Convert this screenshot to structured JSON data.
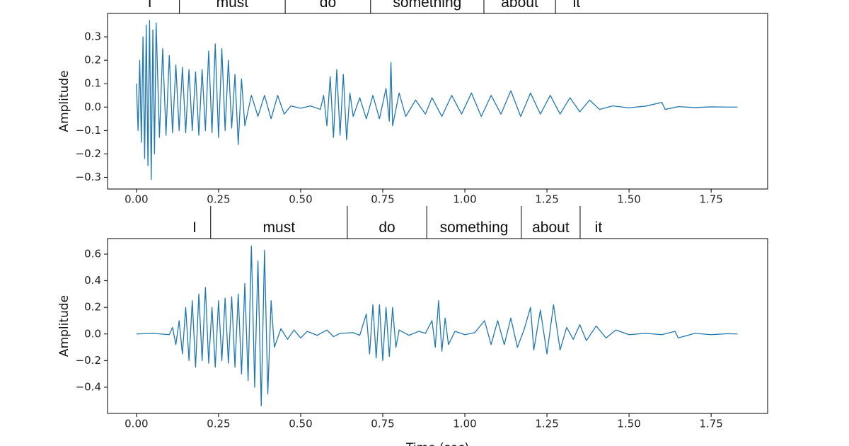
{
  "chart_data": [
    {
      "type": "line",
      "ylabel": "Amplitude",
      "color": "#1f77b4",
      "xlim": [
        -0.088,
        1.922
      ],
      "ylim": [
        -0.35,
        0.4
      ],
      "xticks": [
        {
          "value": 0,
          "label": "0.00"
        },
        {
          "value": 0.25,
          "label": "0.25"
        },
        {
          "value": 0.5,
          "label": "0.50"
        },
        {
          "value": 0.75,
          "label": "0.75"
        },
        {
          "value": 1,
          "label": "1.00"
        },
        {
          "value": 1.25,
          "label": "1.25"
        },
        {
          "value": 1.5,
          "label": "1.50"
        },
        {
          "value": 1.75,
          "label": "1.75"
        }
      ],
      "yticks": [
        {
          "value": -0.3,
          "label": "−0.3"
        },
        {
          "value": -0.2,
          "label": "−0.2"
        },
        {
          "value": -0.1,
          "label": "−0.1"
        },
        {
          "value": 0,
          "label": "0.0"
        },
        {
          "value": 0.1,
          "label": "0.1"
        },
        {
          "value": 0.2,
          "label": "0.2"
        },
        {
          "value": 0.3,
          "label": "0.3"
        }
      ],
      "words": [
        {
          "label": "I",
          "start": -0.05,
          "end": 0.131
        },
        {
          "label": "must",
          "start": 0.131,
          "end": 0.453
        },
        {
          "label": "do",
          "start": 0.453,
          "end": 0.713
        },
        {
          "label": "something",
          "start": 0.713,
          "end": 1.058
        },
        {
          "label": "about",
          "start": 1.058,
          "end": 1.276
        },
        {
          "label": "it",
          "start": 1.276,
          "end": 1.404
        }
      ],
      "x": [
        0,
        0.005,
        0.01,
        0.015,
        0.02,
        0.025,
        0.03,
        0.035,
        0.04,
        0.045,
        0.05,
        0.055,
        0.06,
        0.07,
        0.08,
        0.09,
        0.1,
        0.11,
        0.12,
        0.13,
        0.14,
        0.15,
        0.16,
        0.17,
        0.18,
        0.19,
        0.2,
        0.21,
        0.22,
        0.23,
        0.24,
        0.25,
        0.26,
        0.27,
        0.28,
        0.29,
        0.3,
        0.31,
        0.32,
        0.33,
        0.35,
        0.37,
        0.39,
        0.41,
        0.43,
        0.45,
        0.47,
        0.5,
        0.53,
        0.56,
        0.57,
        0.58,
        0.59,
        0.6,
        0.61,
        0.62,
        0.63,
        0.64,
        0.65,
        0.66,
        0.68,
        0.7,
        0.72,
        0.74,
        0.76,
        0.77,
        0.775,
        0.78,
        0.8,
        0.82,
        0.85,
        0.88,
        0.9,
        0.93,
        0.96,
        0.99,
        1.02,
        1.05,
        1.08,
        1.11,
        1.14,
        1.17,
        1.2,
        1.23,
        1.26,
        1.29,
        1.32,
        1.35,
        1.38,
        1.41,
        1.45,
        1.5,
        1.55,
        1.6,
        1.61,
        1.65,
        1.7,
        1.75,
        1.8,
        1.83
      ],
      "values": [
        0.1,
        -0.1,
        0.2,
        -0.15,
        0.3,
        -0.22,
        0.35,
        -0.25,
        0.37,
        -0.31,
        0.33,
        -0.2,
        0.36,
        -0.13,
        0.25,
        -0.12,
        0.22,
        -0.11,
        0.18,
        -0.1,
        0.17,
        -0.11,
        0.16,
        -0.1,
        0.15,
        -0.12,
        0.16,
        -0.1,
        0.24,
        -0.11,
        0.27,
        -0.13,
        0.25,
        -0.1,
        0.2,
        -0.09,
        0.14,
        -0.16,
        0.12,
        -0.08,
        0.05,
        -0.04,
        0.05,
        -0.05,
        0.05,
        -0.03,
        0.005,
        -0.005,
        0.005,
        -0.01,
        0.05,
        -0.08,
        0.13,
        -0.13,
        0.16,
        -0.12,
        0.14,
        -0.14,
        0.06,
        -0.04,
        0.04,
        -0.05,
        0.05,
        -0.05,
        0.08,
        -0.06,
        0.19,
        -0.08,
        0.06,
        -0.04,
        0.03,
        -0.03,
        0.04,
        -0.04,
        0.05,
        -0.03,
        0.06,
        -0.04,
        0.05,
        -0.03,
        0.07,
        -0.04,
        0.06,
        -0.03,
        0.05,
        -0.03,
        0.04,
        -0.02,
        0.03,
        -0.01,
        0.005,
        -0.003,
        0.004,
        0.02,
        -0.01,
        0.002,
        -0.002,
        0.001,
        0,
        0
      ]
    },
    {
      "type": "line",
      "ylabel": "Amplitude",
      "xlabel": "Time (sec)",
      "color": "#1f77b4",
      "xlim": [
        -0.088,
        1.922
      ],
      "ylim": [
        -0.597,
        0.717
      ],
      "xticks": [
        {
          "value": 0,
          "label": "0.00"
        },
        {
          "value": 0.25,
          "label": "0.25"
        },
        {
          "value": 0.5,
          "label": "0.50"
        },
        {
          "value": 0.75,
          "label": "0.75"
        },
        {
          "value": 1,
          "label": "1.00"
        },
        {
          "value": 1.25,
          "label": "1.25"
        },
        {
          "value": 1.5,
          "label": "1.50"
        },
        {
          "value": 1.75,
          "label": "1.75"
        }
      ],
      "yticks": [
        {
          "value": -0.4,
          "label": "−0.4"
        },
        {
          "value": -0.2,
          "label": "−0.2"
        },
        {
          "value": 0,
          "label": "0.0"
        },
        {
          "value": 0.2,
          "label": "0.2"
        },
        {
          "value": 0.4,
          "label": "0.4"
        },
        {
          "value": 0.6,
          "label": "0.6"
        }
      ],
      "words": [
        {
          "label": "I",
          "start": 0.128,
          "end": 0.226
        },
        {
          "label": "must",
          "start": 0.226,
          "end": 0.642
        },
        {
          "label": "do",
          "start": 0.642,
          "end": 0.884
        },
        {
          "label": "something",
          "start": 0.884,
          "end": 1.172
        },
        {
          "label": "about",
          "start": 1.172,
          "end": 1.351
        },
        {
          "label": "it",
          "start": 1.351,
          "end": 1.463
        }
      ],
      "x": [
        0,
        0.05,
        0.1,
        0.11,
        0.12,
        0.13,
        0.14,
        0.15,
        0.16,
        0.17,
        0.18,
        0.19,
        0.2,
        0.21,
        0.22,
        0.23,
        0.24,
        0.25,
        0.26,
        0.27,
        0.28,
        0.29,
        0.3,
        0.31,
        0.32,
        0.33,
        0.34,
        0.35,
        0.36,
        0.37,
        0.38,
        0.39,
        0.4,
        0.41,
        0.42,
        0.44,
        0.46,
        0.48,
        0.5,
        0.52,
        0.55,
        0.58,
        0.6,
        0.62,
        0.66,
        0.68,
        0.7,
        0.71,
        0.72,
        0.73,
        0.74,
        0.75,
        0.76,
        0.77,
        0.78,
        0.79,
        0.8,
        0.83,
        0.86,
        0.88,
        0.9,
        0.91,
        0.92,
        0.93,
        0.94,
        0.95,
        0.97,
        1.0,
        1.03,
        1.06,
        1.08,
        1.1,
        1.12,
        1.14,
        1.16,
        1.18,
        1.2,
        1.21,
        1.23,
        1.25,
        1.27,
        1.29,
        1.31,
        1.33,
        1.35,
        1.37,
        1.4,
        1.43,
        1.46,
        1.5,
        1.55,
        1.6,
        1.64,
        1.65,
        1.7,
        1.75,
        1.8,
        1.83
      ],
      "values": [
        0,
        0.005,
        -0.005,
        0.05,
        -0.08,
        0.1,
        -0.15,
        0.2,
        -0.2,
        0.25,
        -0.25,
        0.3,
        -0.2,
        0.35,
        -0.22,
        0.2,
        -0.25,
        0.25,
        -0.2,
        0.27,
        -0.22,
        0.28,
        -0.25,
        0.3,
        -0.3,
        0.38,
        -0.35,
        0.66,
        -0.4,
        0.55,
        -0.54,
        0.63,
        -0.45,
        0.25,
        -0.1,
        0.04,
        -0.04,
        0.03,
        -0.03,
        0.02,
        -0.01,
        0.03,
        -0.02,
        0.005,
        0.01,
        -0.01,
        0.15,
        -0.15,
        0.22,
        -0.18,
        0.22,
        -0.2,
        0.2,
        -0.17,
        0.2,
        -0.1,
        0.03,
        -0.01,
        0.02,
        0.005,
        0.1,
        -0.1,
        0.25,
        -0.13,
        0.12,
        -0.08,
        0.02,
        -0.005,
        0.01,
        0.1,
        -0.08,
        0.1,
        -0.08,
        0.12,
        -0.1,
        0.03,
        0.2,
        -0.12,
        0.18,
        -0.15,
        0.22,
        -0.12,
        0.05,
        -0.04,
        0.07,
        -0.05,
        0.06,
        -0.03,
        0.03,
        -0.005,
        0.005,
        -0.005,
        0.02,
        -0.03,
        0.005,
        -0.005,
        0.002,
        0
      ]
    }
  ]
}
